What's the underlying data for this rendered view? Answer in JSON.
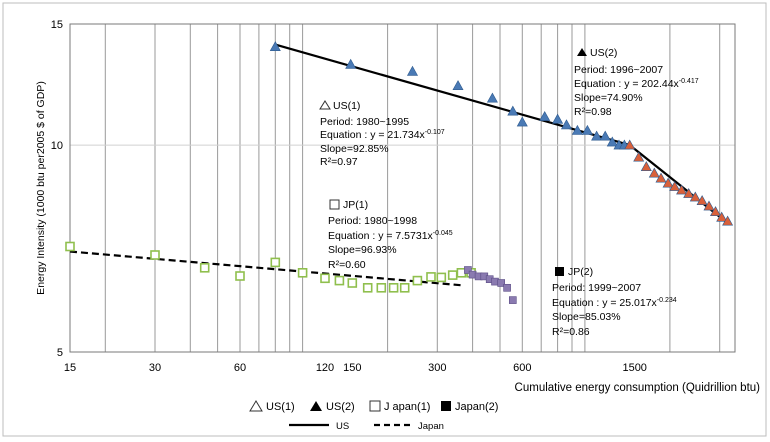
{
  "chart_data": {
    "type": "scatter",
    "title": "",
    "xlabel": "Cumulative energy consumption (Quidrillion btu)",
    "ylabel": "Energy Intensity (1000 btu per2005 $ of GDP)",
    "x_scale": "log",
    "y_scale": "log",
    "xlim": [
      15,
      3400
    ],
    "ylim": [
      5,
      15
    ],
    "x_ticks": [
      15,
      30,
      60,
      120,
      150,
      300,
      600,
      1500
    ],
    "x_tick_labels": [
      "15",
      "30",
      "60",
      "120",
      "150",
      "300",
      "600",
      "1500"
    ],
    "y_ticks": [
      5,
      10,
      15
    ],
    "y_tick_labels": [
      "5",
      "10",
      "15"
    ],
    "grid": "vertical",
    "series": [
      {
        "name": "US(1)",
        "legend_label": "US(1)",
        "color": "#4a7ab5",
        "marker": "triangle",
        "x": [
          80,
          148,
          245,
          355,
          470,
          555,
          600
        ],
        "y": [
          13.9,
          13.1,
          12.8,
          12.2,
          11.7,
          11.2,
          10.8
        ]
      },
      {
        "name": "US(2)",
        "legend_label": "US(2)",
        "color": "#4a7ab5",
        "marker": "triangle",
        "x": [
          720,
          800,
          860,
          940,
          1020,
          1100,
          1180,
          1250,
          1320,
          1380
        ],
        "y": [
          11.0,
          10.9,
          10.7,
          10.5,
          10.5,
          10.3,
          10.3,
          10.1,
          10.0,
          10.0
        ]
      },
      {
        "name": "US(2)",
        "legend_label": "",
        "color": "#d9603a",
        "marker": "triangle",
        "x": [
          1440,
          1550,
          1650,
          1760,
          1860,
          1970,
          2080,
          2200,
          2330,
          2460,
          2600,
          2750,
          2900,
          3050,
          3200
        ],
        "y": [
          10.0,
          9.6,
          9.3,
          9.1,
          8.95,
          8.8,
          8.7,
          8.6,
          8.5,
          8.4,
          8.3,
          8.15,
          8.0,
          7.85,
          7.75
        ]
      },
      {
        "name": "Japan(1)",
        "legend_label": "J apan(1)",
        "color": "#8fbf4d",
        "marker": "open-square",
        "x": [
          15,
          30,
          45,
          60,
          80,
          100,
          120,
          135,
          150,
          170,
          190,
          210,
          230,
          255,
          285,
          310,
          340,
          365,
          395
        ],
        "y": [
          7.12,
          6.92,
          6.63,
          6.45,
          6.75,
          6.52,
          6.4,
          6.35,
          6.3,
          6.2,
          6.2,
          6.2,
          6.2,
          6.35,
          6.43,
          6.42,
          6.47,
          6.52,
          6.52
        ]
      },
      {
        "name": "Japan(2)",
        "legend_label": "Japan(2)",
        "color": "#8a7ab0",
        "marker": "filled-square",
        "x": [
          385,
          400,
          420,
          440,
          460,
          480,
          505,
          530,
          555
        ],
        "y": [
          6.58,
          6.48,
          6.44,
          6.44,
          6.38,
          6.33,
          6.3,
          6.2,
          5.95
        ]
      }
    ],
    "trend_lines": [
      {
        "name": "US",
        "style": "solid",
        "x": [
          80,
          1440
        ],
        "y": [
          14.0,
          10.0
        ]
      },
      {
        "name": "US",
        "style": "solid",
        "x": [
          1440,
          3200
        ],
        "y": [
          10.0,
          7.7
        ]
      },
      {
        "name": "Japan",
        "style": "dashed",
        "x": [
          15,
          370
        ],
        "y": [
          7.0,
          6.25
        ]
      }
    ],
    "annotations": [
      {
        "marker": "open-triangle",
        "title": "US(1)",
        "lines": [
          "Period: 1980~1995",
          "Equation : y = 21.734x",
          "Slope=92.85%",
          "R²=0.97"
        ],
        "exponent": "-0.107"
      },
      {
        "marker": "filled-triangle",
        "title": "US(2)",
        "lines": [
          "Period: 1996~2007",
          "Equation : y = 202.44x",
          "Slope=74.90%",
          "R²=0.98"
        ],
        "exponent": "-0.417"
      },
      {
        "marker": "open-square",
        "title": "JP(1)",
        "lines": [
          "Period: 1980~1998",
          "Equation : y = 7.5731x",
          "Slope=96.93%",
          "R²=0.60"
        ],
        "exponent": "-0.045"
      },
      {
        "marker": "filled-square",
        "title": "JP(2)",
        "lines": [
          "Period: 1999~2007",
          "Equation : y = 25.017x",
          "Slope=85.03%",
          "R²=0.86"
        ],
        "exponent": "-0.234"
      }
    ],
    "legend": {
      "position": "bottom",
      "marker_items": [
        {
          "marker": "open-triangle",
          "label": "US(1)"
        },
        {
          "marker": "filled-triangle",
          "label": "US(2)"
        },
        {
          "marker": "open-square",
          "label": "J apan(1)"
        },
        {
          "marker": "filled-square",
          "label": "Japan(2)"
        }
      ],
      "line_items": [
        {
          "style": "solid",
          "label": "US"
        },
        {
          "style": "dashed",
          "label": "Japan"
        }
      ]
    }
  }
}
